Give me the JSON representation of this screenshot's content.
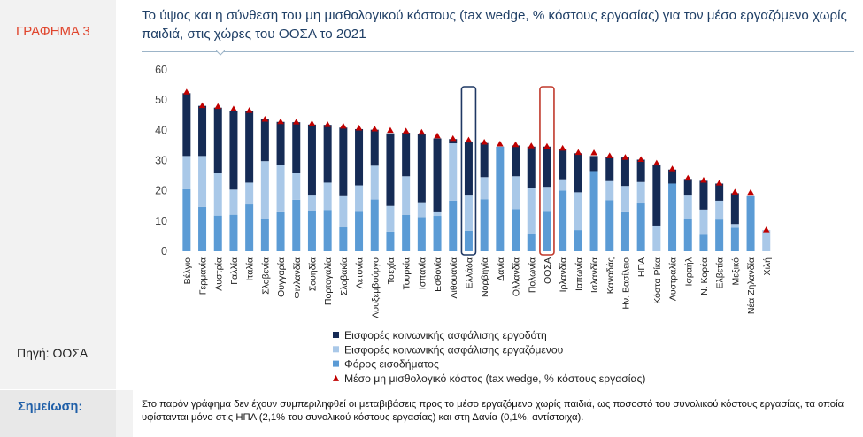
{
  "label": "ΓΡΑΦΗΜΑ 3",
  "source": "Πηγή: ΟΟΣΑ",
  "note_label": "Σημείωση:",
  "note_text": "Στο παρόν γράφημα δεν έχουν συμπεριληφθεί οι μεταβιβάσεις προς το μέσο εργαζόμενο χωρίς παιδιά, ως ποσοστό του συνολικού κόστους εργασίας, τα οποία υφίστανται μόνο στις ΗΠΑ (2,1% του συνολικού κόστους εργασίας) και στη Δανία (0,1%, αντίστοιχα).",
  "chart_data": {
    "type": "bar",
    "stacked": true,
    "title": "Το ύψος και η σύνθεση του μη μισθολογικού κόστους (tax wedge,  % κόστους εργασίας) για τον μέσο εργαζόμενο χωρίς παιδιά, στις χώρες του ΟΟΣΑ το 2021",
    "ylim": [
      0,
      60
    ],
    "yticks": [
      0,
      10,
      20,
      30,
      40,
      50,
      60
    ],
    "grid": false,
    "legend_position": "bottom",
    "categories": [
      "Βέλγιο",
      "Γερμανία",
      "Αυστρία",
      "Γαλλία",
      "Ιταλία",
      "Σλοβενία",
      "Ουγγαρία",
      "Φινλανδία",
      "Σουηδία",
      "Πορτογαλία",
      "Σλοβακία",
      "Λετονία",
      "Λουξεμβούργο",
      "Τσεχία",
      "Τουρκία",
      "Ισπανία",
      "Εσθονία",
      "Λιθουανία",
      "Ελλάδα",
      "Νορβηγία",
      "Δανία",
      "Ολλανδία",
      "Πολωνία",
      "ΟΟΣΑ",
      "Ιρλανδία",
      "Ιαπωνία",
      "Ισλανδία",
      "Καναδάς",
      "Ην. Βασίλειο",
      "ΗΠΑ",
      "Κόστα Ρίκα",
      "Αυστραλία",
      "Ισραήλ",
      "Ν. Κορέα",
      "Ελβετία",
      "Μεξικό",
      "Νέα Ζηλανδία",
      "Χιλή"
    ],
    "highlight": [
      {
        "category": "Ελλάδα",
        "color": "#1f3864"
      },
      {
        "category": "ΟΟΣΑ",
        "color": "#c0392b"
      }
    ],
    "series": [
      {
        "name": "Φόρος εισοδήματος",
        "color": "#5b9bd5",
        "values": [
          20.5,
          14.7,
          11.8,
          12.1,
          15.5,
          10.7,
          12.9,
          17.0,
          13.4,
          13.7,
          7.9,
          13.1,
          17.1,
          6.5,
          12.0,
          11.3,
          11.7,
          16.7,
          6.8,
          17.2,
          34.6,
          13.9,
          5.6,
          13.1,
          20.1,
          7.0,
          26.5,
          16.9,
          12.9,
          15.8,
          0.0,
          22.4,
          10.6,
          5.5,
          10.5,
          7.8,
          18.5,
          0.0
        ]
      },
      {
        "name": "Εισφορές κοινωνικής ασφάλισης εργαζόμενου",
        "color": "#a9c8e8",
        "values": [
          11.0,
          16.8,
          14.2,
          8.3,
          7.2,
          19.1,
          15.7,
          8.8,
          5.3,
          9.0,
          10.6,
          8.7,
          11.2,
          8.5,
          12.8,
          4.9,
          1.2,
          19.0,
          11.9,
          7.3,
          0.0,
          10.9,
          15.3,
          8.2,
          3.7,
          12.5,
          0.0,
          6.3,
          8.7,
          7.1,
          8.5,
          0.0,
          8.1,
          8.3,
          6.2,
          1.2,
          0.0,
          7.0
        ]
      },
      {
        "name": "Εισφορές κοινωνικής ασφάλισης εργοδότη",
        "color": "#152b55",
        "values": [
          20.8,
          16.6,
          21.5,
          26.1,
          23.6,
          13.8,
          14.2,
          16.9,
          23.2,
          19.1,
          22.4,
          18.6,
          11.9,
          24.0,
          14.4,
          22.7,
          24.4,
          1.4,
          17.6,
          11.3,
          0.0,
          10.2,
          13.7,
          13.3,
          10.1,
          12.9,
          5.0,
          8.1,
          9.4,
          7.4,
          20.2,
          4.6,
          5.2,
          9.5,
          5.7,
          10.2,
          0.0,
          0.0
        ]
      }
    ],
    "totals_series": {
      "name": "Μέσο μη μισθολογικό κόστος (tax wedge, % κόστους εργασίας)",
      "color": "#c00000",
      "values": [
        52.6,
        48.1,
        47.8,
        47.0,
        46.5,
        43.6,
        42.8,
        42.7,
        42.2,
        41.8,
        41.3,
        40.7,
        40.4,
        39.9,
        39.7,
        39.3,
        38.1,
        37.2,
        36.7,
        36.0,
        35.4,
        35.2,
        34.8,
        34.6,
        34.0,
        32.6,
        32.5,
        31.5,
        31.0,
        30.3,
        29.1,
        27.2,
        24.1,
        23.4,
        22.5,
        19.5,
        19.4,
        7.0
      ]
    }
  }
}
